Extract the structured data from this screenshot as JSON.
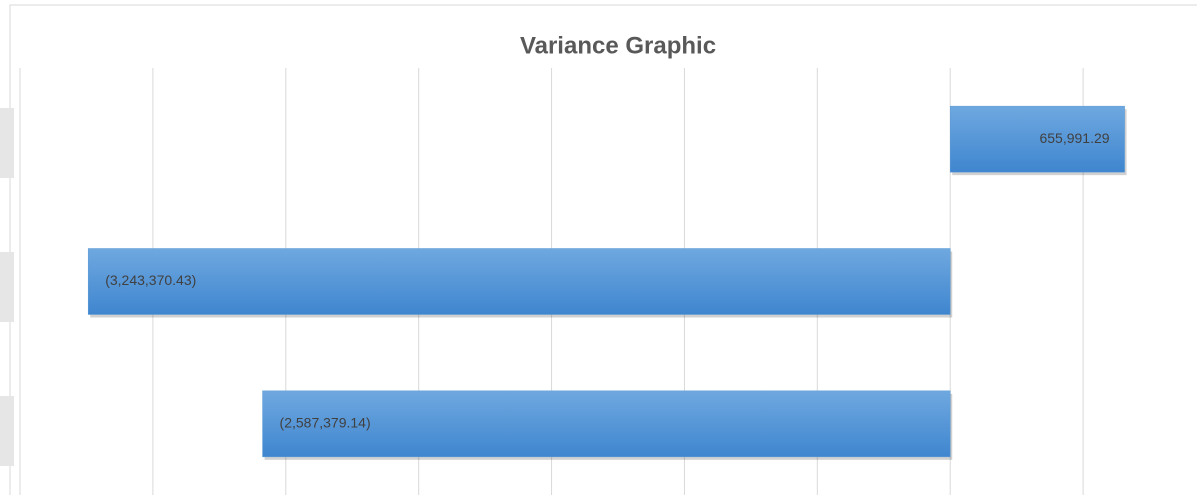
{
  "chart_data": {
    "type": "bar",
    "orientation": "horizontal",
    "title": "Variance  Graphic",
    "categories": [
      null,
      null,
      null
    ],
    "values": [
      655991.29,
      -3243370.43,
      -2587379.14
    ],
    "value_labels": [
      "655,991.29",
      "(3,243,370.43)",
      "(2,587,379.14)"
    ],
    "color": "#5b9bd5",
    "xlim": [
      -3500000,
      1000000
    ],
    "xticks": [
      -3500000,
      -3000000,
      -2500000,
      -2000000,
      -1500000,
      -1000000,
      -500000,
      0,
      500000
    ],
    "grid": true
  }
}
